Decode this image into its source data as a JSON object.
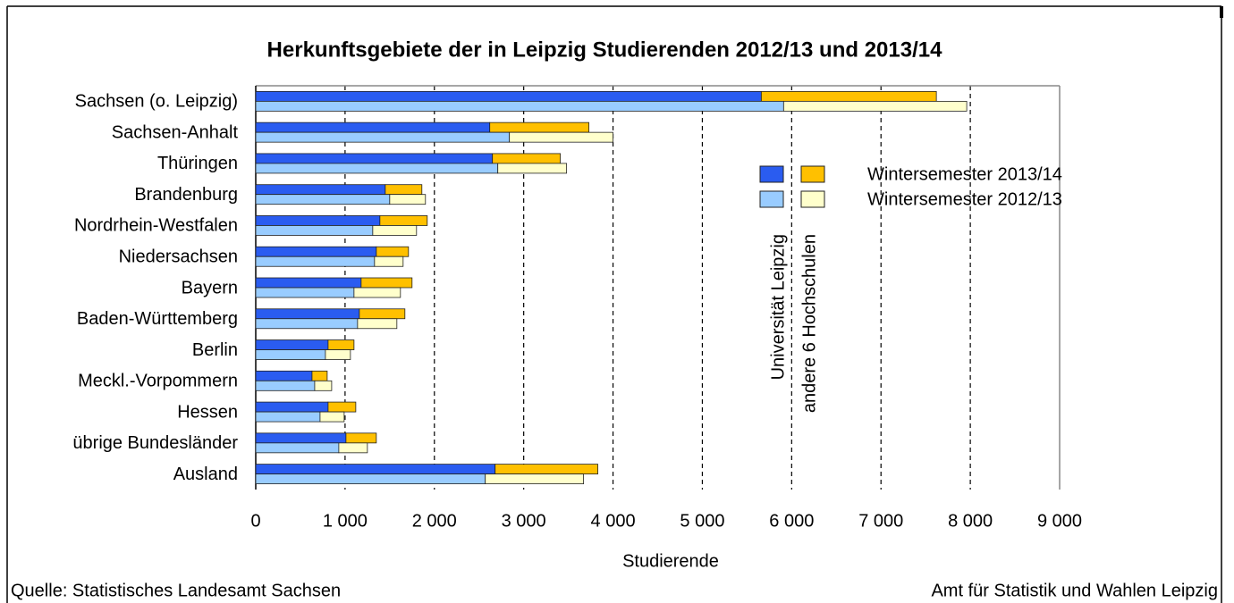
{
  "chart_data": {
    "type": "bar",
    "orientation": "horizontal",
    "stacked": true,
    "title": "Herkunftsgebiete der in Leipzig Studierenden 2012/13 und 2013/14",
    "x_label": "Studierende",
    "categories": [
      "Sachsen (o. Leipzig)",
      "Sachsen-Anhalt",
      "Thüringen",
      "Brandenburg",
      "Nordrhein-Westfalen",
      "Niedersachsen",
      "Bayern",
      "Baden-Württemberg",
      "Berlin",
      "Meckl.-Vorpommern",
      "Hessen",
      "übrige Bundesländer",
      "Ausland"
    ],
    "groups": [
      {
        "name": "Wintersemester 2013/14",
        "series": [
          {
            "name": "Universität Leipzig",
            "color": "#2a5cf0",
            "values": [
              5660,
              2620,
              2650,
              1450,
              1390,
              1350,
              1180,
              1160,
              810,
              630,
              810,
              1010,
              2680
            ]
          },
          {
            "name": "andere 6 Hochschulen",
            "color": "#ffc000",
            "values": [
              1960,
              1110,
              760,
              410,
              530,
              360,
              570,
              510,
              290,
              170,
              310,
              340,
              1150
            ]
          }
        ]
      },
      {
        "name": "Wintersemester 2012/13",
        "series": [
          {
            "name": "Universität Leipzig",
            "color": "#99ccff",
            "values": [
              5910,
              2840,
              2710,
              1500,
              1310,
              1330,
              1100,
              1140,
              780,
              660,
              720,
              930,
              2570
            ]
          },
          {
            "name": "andere 6 Hochschulen",
            "color": "#ffffcc",
            "values": [
              2050,
              1160,
              770,
              400,
              490,
              320,
              520,
              440,
              280,
              190,
              270,
              320,
              1100
            ]
          }
        ]
      }
    ],
    "xlim": [
      0,
      9000
    ],
    "xticks": [
      0,
      {
        "value": 1000,
        "label": "1 000"
      },
      {
        "value": 2000,
        "label": "2 000"
      },
      {
        "value": 3000,
        "label": "3 000"
      },
      {
        "value": 4000,
        "label": "4 000"
      },
      {
        "value": 5000,
        "label": "5 000"
      },
      {
        "value": 6000,
        "label": "6 000"
      },
      {
        "value": 7000,
        "label": "7 000"
      },
      {
        "value": 8000,
        "label": "8 000"
      },
      {
        "value": 9000,
        "label": "9 000"
      }
    ],
    "grid": true
  },
  "footer": {
    "source": "Quelle: Statistisches Landesamt Sachsen",
    "publisher": "Amt für Statistik und Wahlen Leipzig"
  }
}
